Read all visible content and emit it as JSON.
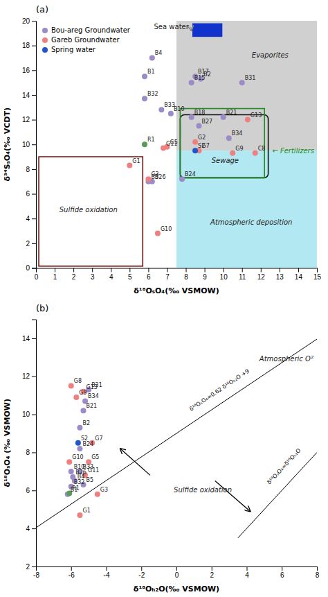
{
  "chart_data": [
    {
      "type": "scatter",
      "title": "(a)",
      "xlabel": "δ¹⁸OₛO₄(‰ VSMOW)",
      "ylabel": "δ³⁴SₛO₄(‰ VCDT)",
      "xlim": [
        0,
        15
      ],
      "ylim": [
        0,
        20
      ],
      "xticks": [
        0,
        1,
        2,
        3,
        4,
        5,
        6,
        7,
        8,
        9,
        10,
        11,
        12,
        13,
        14,
        15
      ],
      "yticks": [
        0,
        2,
        4,
        6,
        8,
        10,
        12,
        14,
        16,
        18,
        20
      ],
      "legend": "upper left",
      "regions": [
        {
          "x": [
            7.5,
            15
          ],
          "y": [
            9.5,
            20
          ],
          "color": "#b0b0b0"
        },
        {
          "x": [
            7.5,
            15
          ],
          "y": [
            0,
            9.5
          ],
          "color": "#7fd8e8"
        }
      ],
      "boxes": [
        {
          "type": "rect",
          "x": 0.15,
          "y": 0.15,
          "w": 5.55,
          "h": 8.85,
          "color": "#7a1010"
        },
        {
          "type": "rounded",
          "x": 7.7,
          "y": 7.3,
          "w": 4.7,
          "h": 5.1,
          "color": "#111111"
        },
        {
          "type": "rect",
          "x": 7.7,
          "y": 7.3,
          "w": 4.5,
          "h": 5.6,
          "color": "#228B22"
        },
        {
          "type": "filled",
          "x": 8.35,
          "y": 18.7,
          "w": 1.6,
          "h": 1.1,
          "color": "#1133cc"
        }
      ],
      "annotations": [
        {
          "text": "Sea water",
          "x": 6.3,
          "y": 19.5,
          "arrow_to": [
            8.3,
            19.2
          ]
        },
        {
          "text": "Evaporites",
          "x": 12.5,
          "y": 17.0
        },
        {
          "text": "Atmospheric deposition",
          "x": 11.5,
          "y": 3.5
        },
        {
          "text": "Sulfide oxidation",
          "x": 2.8,
          "y": 4.5
        },
        {
          "text": "Sewage",
          "x": 10.1,
          "y": 8.5
        },
        {
          "text": "← Fertilizers",
          "x": 14.85,
          "y": 9.3,
          "color": "#228B22"
        }
      ],
      "series": [
        {
          "name": "Bou-areg Groundwater",
          "color": "#9b8cc8",
          "x": [
            5.8,
            8.8,
            6.2,
            6.0,
            7.2,
            8.3,
            8.5,
            8.3,
            10.0,
            7.8,
            6.2,
            8.7,
            11.0,
            5.8,
            6.7,
            10.3
          ],
          "values": [
            15.5,
            15.3,
            17.0,
            7.0,
            12.5,
            15.0,
            15.5,
            12.2,
            12.2,
            7.2,
            7.0,
            11.5,
            15.0,
            13.7,
            12.8,
            10.5
          ],
          "labels": [
            "B1",
            "B2",
            "B4",
            "B5",
            "B10",
            "B15",
            "B17",
            "B18",
            "B21",
            "B24",
            "B26",
            "B27",
            "B31",
            "B32",
            "B33",
            "B34"
          ]
        },
        {
          "name": "Gareb Groundwater",
          "color": "#f08080",
          "x": [
            5.0,
            8.5,
            6.0,
            7.0,
            8.7,
            10.5,
            6.5,
            6.8,
            11.3,
            11.7
          ],
          "values": [
            8.3,
            10.2,
            7.2,
            9.8,
            9.5,
            9.3,
            2.8,
            9.7,
            12.0,
            9.3
          ],
          "labels": [
            "G1",
            "G2",
            "G3",
            "G5",
            "G7",
            "G9",
            "G10",
            "G11",
            "G13",
            "C8"
          ]
        },
        {
          "name": "Spring water",
          "color": "#2255cc",
          "colors": [
            "#5a9a5a",
            "#2255cc"
          ],
          "x": [
            5.8,
            8.5
          ],
          "values": [
            10.0,
            9.5
          ],
          "labels": [
            "R1",
            "S2"
          ]
        }
      ]
    },
    {
      "type": "scatter",
      "title": "(b)",
      "xlabel": "δ¹⁸Oₕ₂O(‰ VSMOW)",
      "ylabel": "δ¹⁸OₛO₄ (‰ VSMOW)",
      "xlim": [
        -8,
        8
      ],
      "ylim": [
        2,
        15
      ],
      "xticks": [
        -8,
        -6,
        -4,
        -2,
        0,
        2,
        4,
        6,
        8
      ],
      "yticks": [
        2,
        4,
        6,
        8,
        10,
        12,
        14
      ],
      "lines": [
        {
          "x": [
            -8,
            8
          ],
          "y": [
            4.04,
            13.96
          ],
          "label": "δ¹⁸OₛO₄=0.62 δ¹⁸Oₕ₂O +9",
          "label_x": 2.5,
          "label_y": 11.2
        },
        {
          "x": [
            3.5,
            8
          ],
          "y": [
            3.5,
            8
          ],
          "label": "δ¹⁸OₛO₄=δ¹⁸Oₕ₂O",
          "label_x": 6.2,
          "label_y": 7.2
        }
      ],
      "annotations": [
        {
          "text": "Atmospheric O²",
          "x": 7.8,
          "y": 12.8
        },
        {
          "text": "Sulfide oxidation",
          "x": 1.5,
          "y": 5.9
        }
      ],
      "arrows": [
        {
          "x1": -1.5,
          "y1": 6.8,
          "x2": -3.2,
          "y2": 8.2
        },
        {
          "x1": 2.2,
          "y1": 6.5,
          "x2": 4.2,
          "y2": 4.9
        }
      ],
      "series": [
        {
          "color": "#9b8cc8",
          "x": [
            -6.2,
            -5.5,
            -5.8,
            -5.3,
            -6.0,
            -5.3,
            -5.5,
            -5.9,
            -5.0,
            -6.0,
            -5.5,
            -5.2
          ],
          "values": [
            5.8,
            9.3,
            6.5,
            6.3,
            7.0,
            10.2,
            8.2,
            6.7,
            11.3,
            6.2,
            7.0,
            10.7
          ],
          "labels": [
            "B1",
            "B2",
            "B4",
            "B5",
            "B10",
            "B21",
            "B24",
            "B26",
            "B31",
            "B32",
            "B33",
            "B34"
          ]
        },
        {
          "color": "#f08080",
          "x": [
            -5.5,
            -4.5,
            -5.0,
            -4.8,
            -6.0,
            -5.7,
            -6.1,
            -5.2,
            -5.3
          ],
          "values": [
            4.7,
            5.8,
            7.5,
            8.5,
            11.5,
            10.9,
            7.5,
            6.8,
            11.2
          ],
          "labels": [
            "G1",
            "G3",
            "G5",
            "G7",
            "G8",
            "G9",
            "G10",
            "G11",
            "G13"
          ]
        },
        {
          "colors": [
            "#2255cc",
            "#5a9a5a"
          ],
          "x": [
            -5.6,
            -6.1
          ],
          "values": [
            8.5,
            5.85
          ],
          "labels": [
            "S2",
            "R1"
          ]
        }
      ]
    }
  ]
}
